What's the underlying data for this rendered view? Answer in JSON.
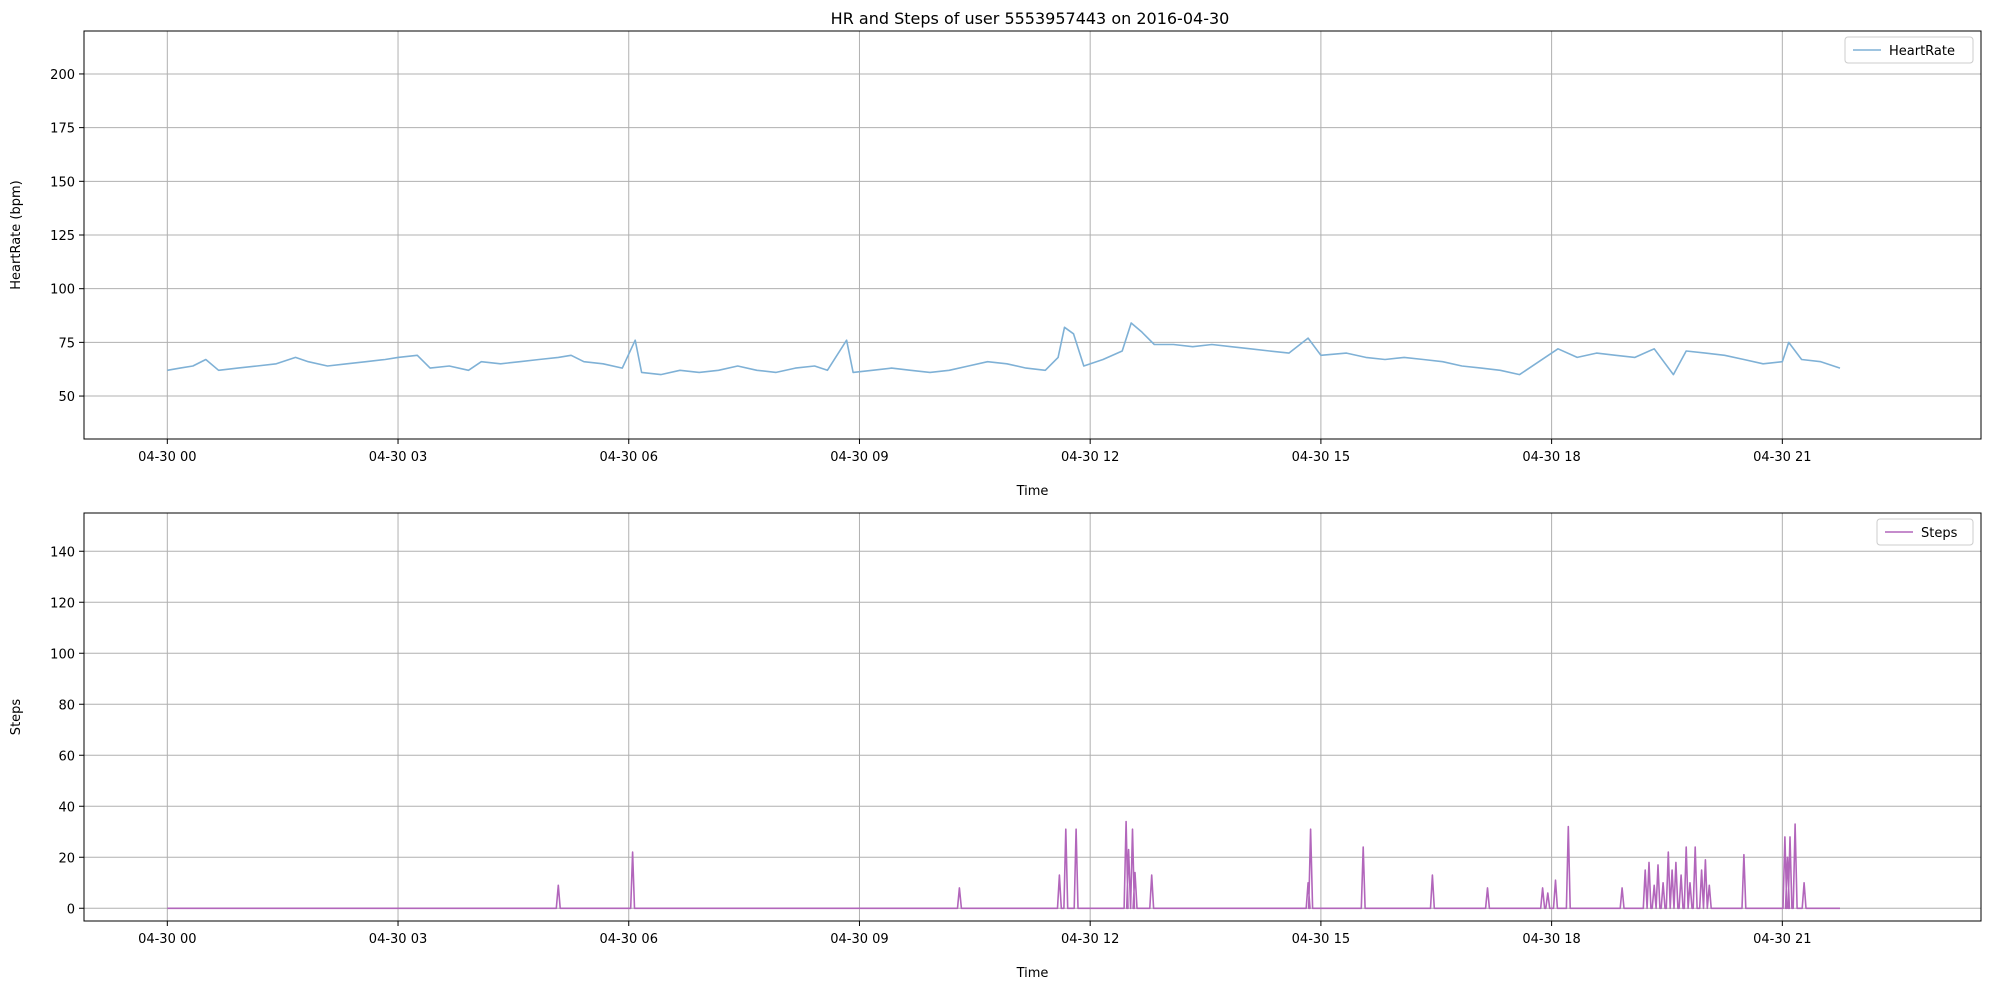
{
  "figure_title": "HR and Steps of user 5553957443 on 2016-04-30",
  "colors": {
    "heartrate": "#7fb1d6",
    "steps": "#b266bb",
    "grid": "#b0b0b0",
    "axes": "#000000"
  },
  "chart_data": [
    {
      "type": "line",
      "title": "HR and Steps of user 5553957443 on 2016-04-30",
      "xlabel": "Time",
      "ylabel": "HeartRate (bpm)",
      "xlim": [
        "2016-04-29 22:55",
        "2016-04-30 23:35"
      ],
      "ylim": [
        30,
        220
      ],
      "xticks": [
        "04-30 00",
        "04-30 03",
        "04-30 06",
        "04-30 09",
        "04-30 12",
        "04-30 15",
        "04-30 18",
        "04-30 21"
      ],
      "yticks": [
        50,
        75,
        100,
        125,
        150,
        175,
        200
      ],
      "grid": true,
      "legend_position": "top-right",
      "series": [
        {
          "name": "HeartRate",
          "color": "#7fb1d6",
          "points": [
            [
              "2016-04-30 00:00",
              62
            ],
            [
              "2016-04-30 00:10",
              63
            ],
            [
              "2016-04-30 00:20",
              64
            ],
            [
              "2016-04-30 00:30",
              67
            ],
            [
              "2016-04-30 00:40",
              62
            ],
            [
              "2016-04-30 00:55",
              63
            ],
            [
              "2016-04-30 01:10",
              64
            ],
            [
              "2016-04-30 01:25",
              65
            ],
            [
              "2016-04-30 01:40",
              68
            ],
            [
              "2016-04-30 01:50",
              66
            ],
            [
              "2016-04-30 02:05",
              64
            ],
            [
              "2016-04-30 02:20",
              65
            ],
            [
              "2016-04-30 02:35",
              66
            ],
            [
              "2016-04-30 02:50",
              67
            ],
            [
              "2016-04-30 03:00",
              68
            ],
            [
              "2016-04-30 03:15",
              69
            ],
            [
              "2016-04-30 03:25",
              63
            ],
            [
              "2016-04-30 03:40",
              64
            ],
            [
              "2016-04-30 03:55",
              62
            ],
            [
              "2016-04-30 04:05",
              66
            ],
            [
              "2016-04-30 04:20",
              65
            ],
            [
              "2016-04-30 04:35",
              66
            ],
            [
              "2016-04-30 04:50",
              67
            ],
            [
              "2016-04-30 05:05",
              68
            ],
            [
              "2016-04-30 05:15",
              69
            ],
            [
              "2016-04-30 05:25",
              66
            ],
            [
              "2016-04-30 05:40",
              65
            ],
            [
              "2016-04-30 05:55",
              63
            ],
            [
              "2016-04-30 06:05",
              76
            ],
            [
              "2016-04-30 06:10",
              61
            ],
            [
              "2016-04-30 06:25",
              60
            ],
            [
              "2016-04-30 06:40",
              62
            ],
            [
              "2016-04-30 06:55",
              61
            ],
            [
              "2016-04-30 07:10",
              62
            ],
            [
              "2016-04-30 07:25",
              64
            ],
            [
              "2016-04-30 07:40",
              62
            ],
            [
              "2016-04-30 07:55",
              61
            ],
            [
              "2016-04-30 08:10",
              63
            ],
            [
              "2016-04-30 08:25",
              64
            ],
            [
              "2016-04-30 08:35",
              62
            ],
            [
              "2016-04-30 08:50",
              76
            ],
            [
              "2016-04-30 08:55",
              61
            ],
            [
              "2016-04-30 09:10",
              62
            ],
            [
              "2016-04-30 09:25",
              63
            ],
            [
              "2016-04-30 09:40",
              62
            ],
            [
              "2016-04-30 09:55",
              61
            ],
            [
              "2016-04-30 10:10",
              62
            ],
            [
              "2016-04-30 10:25",
              64
            ],
            [
              "2016-04-30 10:40",
              66
            ],
            [
              "2016-04-30 10:55",
              65
            ],
            [
              "2016-04-30 11:10",
              63
            ],
            [
              "2016-04-30 11:25",
              62
            ],
            [
              "2016-04-30 11:35",
              68
            ],
            [
              "2016-04-30 11:40",
              82
            ],
            [
              "2016-04-30 11:47",
              79
            ],
            [
              "2016-04-30 11:55",
              64
            ],
            [
              "2016-04-30 12:10",
              67
            ],
            [
              "2016-04-30 12:25",
              71
            ],
            [
              "2016-04-30 12:32",
              84
            ],
            [
              "2016-04-30 12:40",
              80
            ],
            [
              "2016-04-30 12:50",
              74
            ],
            [
              "2016-04-30 13:05",
              74
            ],
            [
              "2016-04-30 13:20",
              73
            ],
            [
              "2016-04-30 13:35",
              74
            ],
            [
              "2016-04-30 13:50",
              73
            ],
            [
              "2016-04-30 14:05",
              72
            ],
            [
              "2016-04-30 14:20",
              71
            ],
            [
              "2016-04-30 14:35",
              70
            ],
            [
              "2016-04-30 14:50",
              77
            ],
            [
              "2016-04-30 15:00",
              69
            ],
            [
              "2016-04-30 15:20",
              70
            ],
            [
              "2016-04-30 15:35",
              68
            ],
            [
              "2016-04-30 15:50",
              67
            ],
            [
              "2016-04-30 16:05",
              68
            ],
            [
              "2016-04-30 16:20",
              67
            ],
            [
              "2016-04-30 16:35",
              66
            ],
            [
              "2016-04-30 16:50",
              64
            ],
            [
              "2016-04-30 17:05",
              63
            ],
            [
              "2016-04-30 17:20",
              62
            ],
            [
              "2016-04-30 17:35",
              60
            ],
            [
              "2016-04-30 17:50",
              66
            ],
            [
              "2016-04-30 18:05",
              72
            ],
            [
              "2016-04-30 18:20",
              68
            ],
            [
              "2016-04-30 18:35",
              70
            ],
            [
              "2016-04-30 18:50",
              69
            ],
            [
              "2016-04-30 19:05",
              68
            ],
            [
              "2016-04-30 19:20",
              72
            ],
            [
              "2016-04-30 19:35",
              60
            ],
            [
              "2016-04-30 19:45",
              71
            ],
            [
              "2016-04-30 20:00",
              70
            ],
            [
              "2016-04-30 20:15",
              69
            ],
            [
              "2016-04-30 20:30",
              67
            ],
            [
              "2016-04-30 20:45",
              65
            ],
            [
              "2016-04-30 21:00",
              66
            ],
            [
              "2016-04-30 21:05",
              75
            ],
            [
              "2016-04-30 21:15",
              67
            ],
            [
              "2016-04-30 21:30",
              66
            ],
            [
              "2016-04-30 21:45",
              63
            ]
          ]
        }
      ]
    },
    {
      "type": "line",
      "xlabel": "Time",
      "ylabel": "Steps",
      "xlim": [
        "2016-04-29 22:55",
        "2016-04-30 23:35"
      ],
      "ylim": [
        -5,
        155
      ],
      "xticks": [
        "04-30 00",
        "04-30 03",
        "04-30 06",
        "04-30 09",
        "04-30 12",
        "04-30 15",
        "04-30 18",
        "04-30 21"
      ],
      "yticks": [
        0,
        20,
        40,
        60,
        80,
        100,
        120,
        140
      ],
      "grid": true,
      "legend_position": "top-right",
      "series": [
        {
          "name": "Steps",
          "color": "#b266bb",
          "baseline_start": "2016-04-30 00:00",
          "baseline_end": "2016-04-30 21:45",
          "spikes": [
            [
              "2016-04-30 05:05",
              9
            ],
            [
              "2016-04-30 06:03",
              22
            ],
            [
              "2016-04-30 10:18",
              8
            ],
            [
              "2016-04-30 11:36",
              13
            ],
            [
              "2016-04-30 11:41",
              31
            ],
            [
              "2016-04-30 11:49",
              31
            ],
            [
              "2016-04-30 12:28",
              34
            ],
            [
              "2016-04-30 12:30",
              23
            ],
            [
              "2016-04-30 12:33",
              31
            ],
            [
              "2016-04-30 12:35",
              14
            ],
            [
              "2016-04-30 12:48",
              13
            ],
            [
              "2016-04-30 14:50",
              10
            ],
            [
              "2016-04-30 14:52",
              31
            ],
            [
              "2016-04-30 15:33",
              24
            ],
            [
              "2016-04-30 16:27",
              13
            ],
            [
              "2016-04-30 17:10",
              8
            ],
            [
              "2016-04-30 17:53",
              8
            ],
            [
              "2016-04-30 17:57",
              6
            ],
            [
              "2016-04-30 18:03",
              11
            ],
            [
              "2016-04-30 18:13",
              32
            ],
            [
              "2016-04-30 18:55",
              8
            ],
            [
              "2016-04-30 19:13",
              15
            ],
            [
              "2016-04-30 19:16",
              18
            ],
            [
              "2016-04-30 19:20",
              9
            ],
            [
              "2016-04-30 19:23",
              17
            ],
            [
              "2016-04-30 19:27",
              10
            ],
            [
              "2016-04-30 19:31",
              22
            ],
            [
              "2016-04-30 19:34",
              15
            ],
            [
              "2016-04-30 19:37",
              18
            ],
            [
              "2016-04-30 19:41",
              13
            ],
            [
              "2016-04-30 19:45",
              24
            ],
            [
              "2016-04-30 19:48",
              10
            ],
            [
              "2016-04-30 19:52",
              24
            ],
            [
              "2016-04-30 19:57",
              15
            ],
            [
              "2016-04-30 20:00",
              19
            ],
            [
              "2016-04-30 20:03",
              9
            ],
            [
              "2016-04-30 20:30",
              21
            ],
            [
              "2016-04-30 21:02",
              28
            ],
            [
              "2016-04-30 21:04",
              20
            ],
            [
              "2016-04-30 21:06",
              28
            ],
            [
              "2016-04-30 21:10",
              33
            ],
            [
              "2016-04-30 21:17",
              10
            ]
          ]
        }
      ]
    }
  ]
}
